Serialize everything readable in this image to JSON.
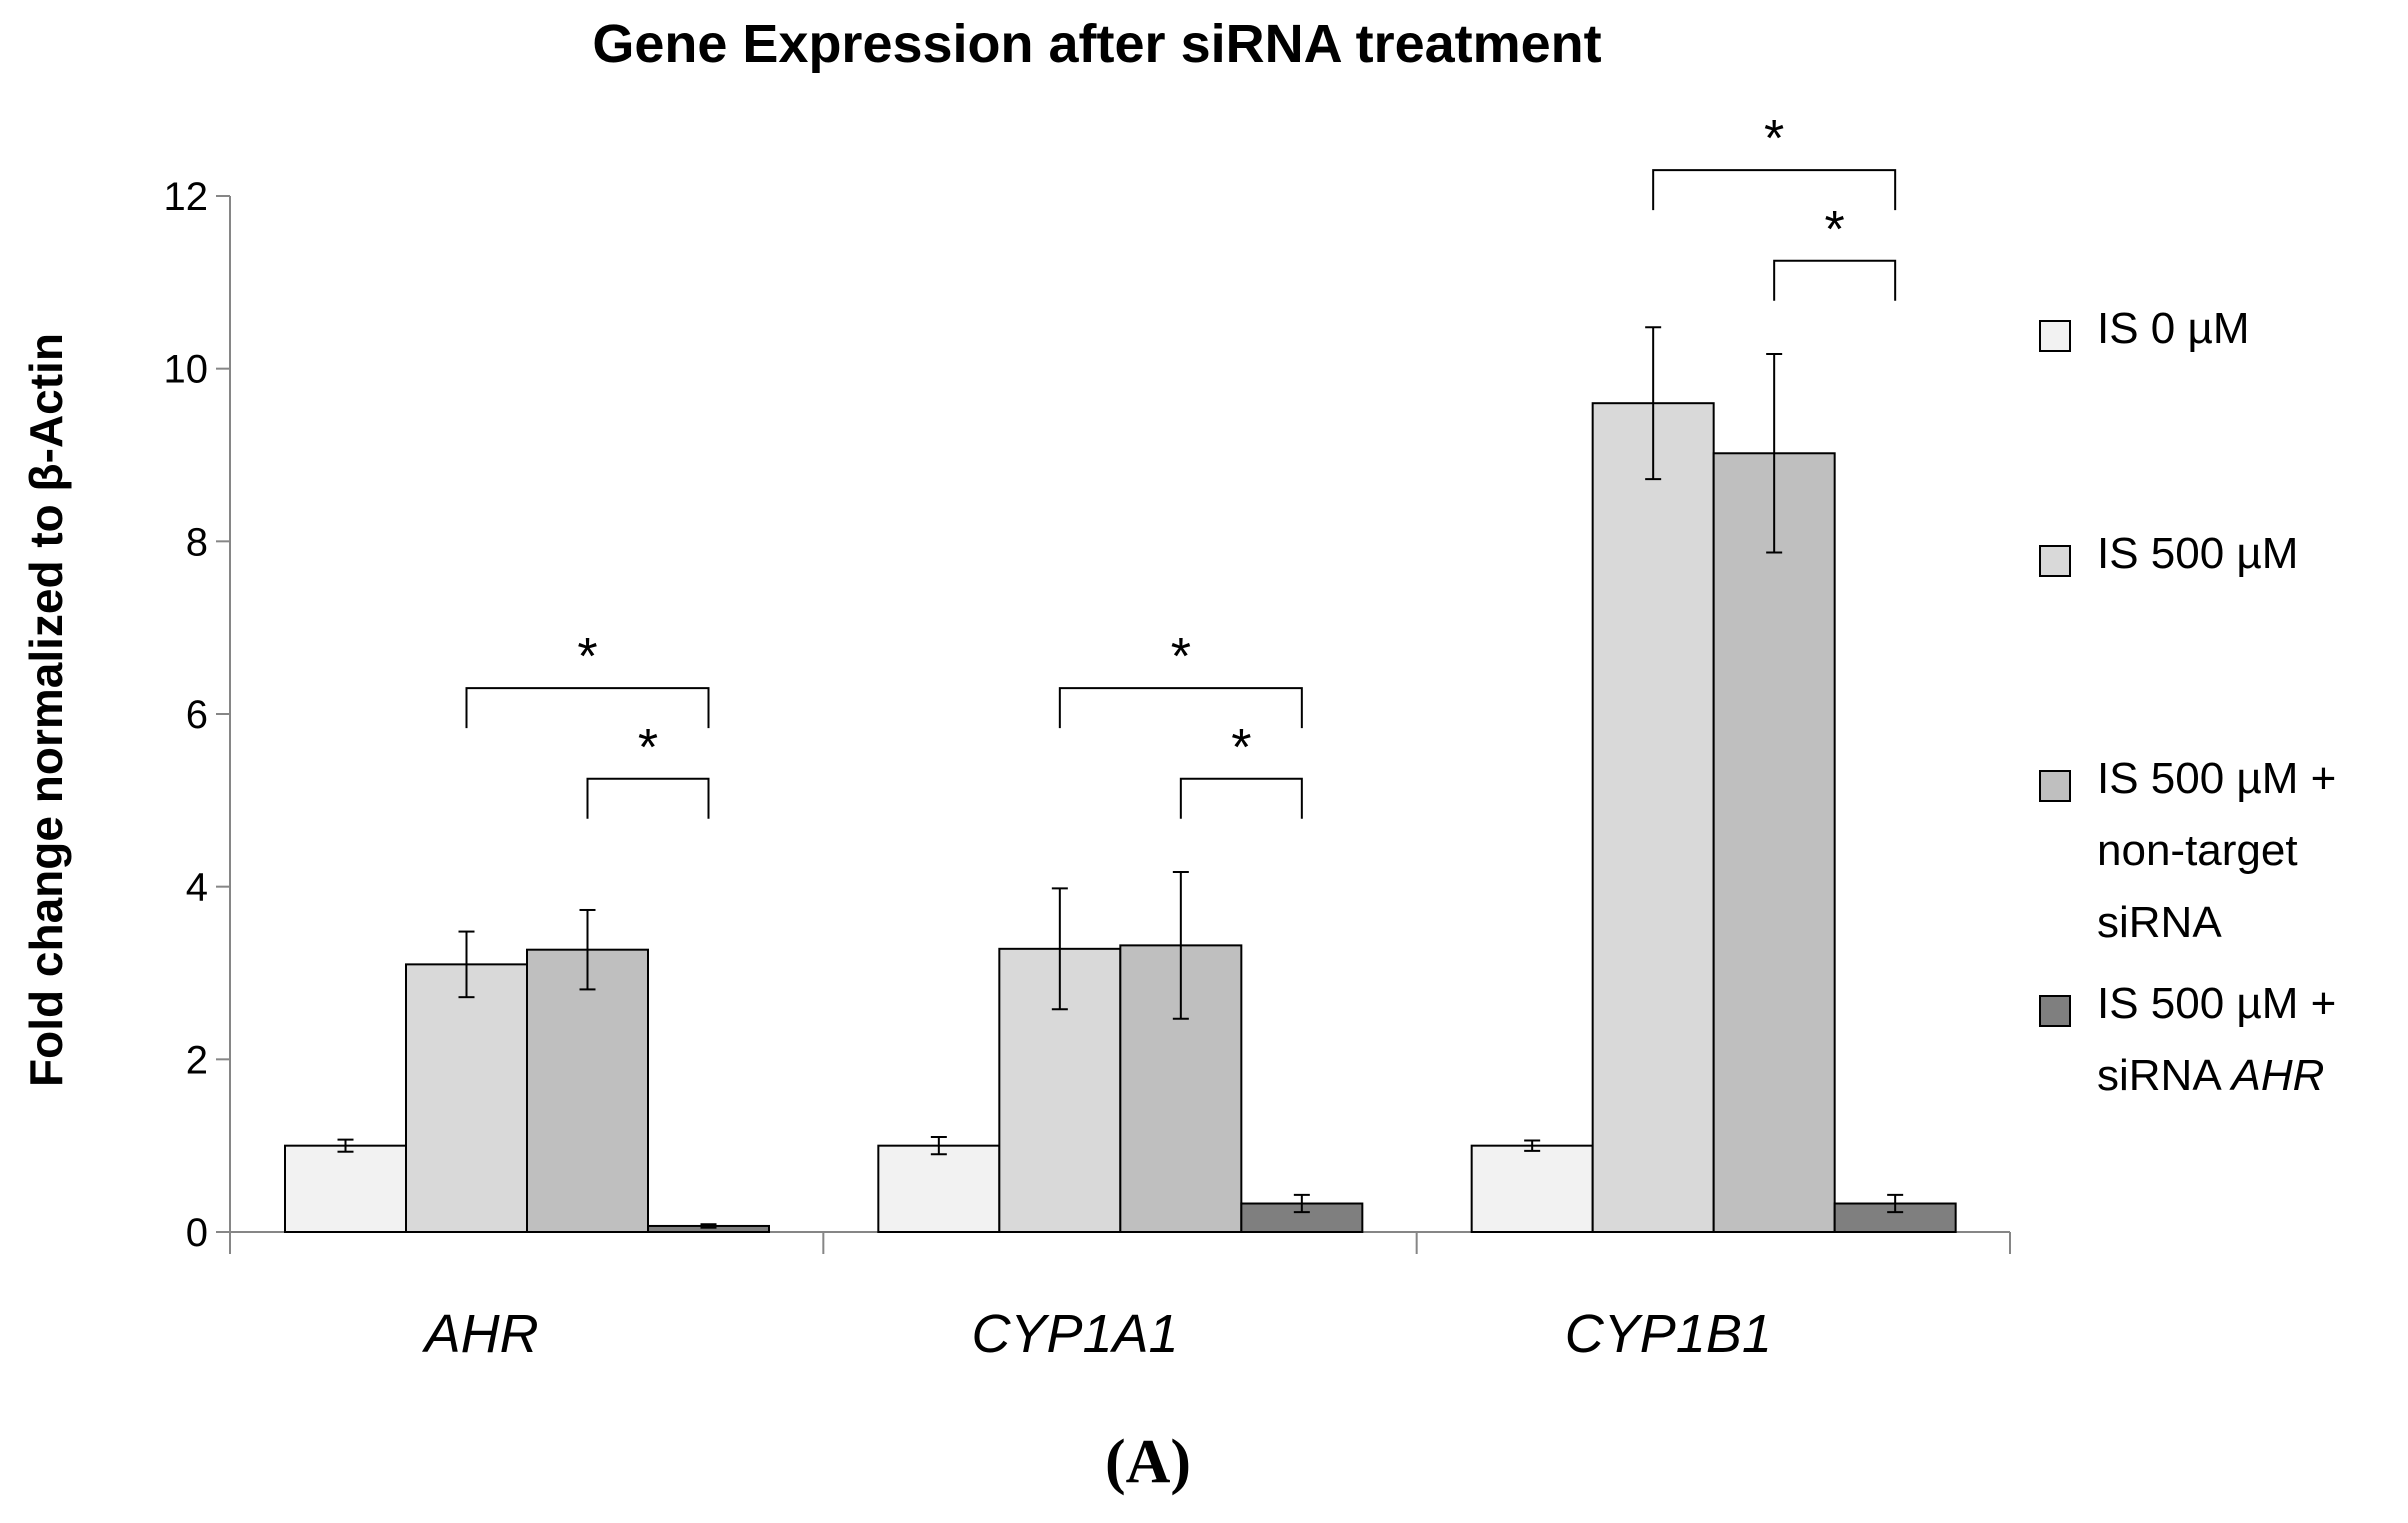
{
  "chart_data": {
    "type": "bar",
    "title": "Gene Expression after siRNA treatment",
    "ylabel": "Fold change normalized to β-Actin",
    "xlabel": "",
    "ylim": [
      0,
      12
    ],
    "yticks": [
      "0",
      "2",
      "4",
      "6",
      "8",
      "10",
      "12"
    ],
    "ytick_values": [
      0,
      2,
      4,
      6,
      8,
      10,
      12
    ],
    "categories": [
      "AHR",
      "CYP1A1",
      "CYP1B1"
    ],
    "series": [
      {
        "name": "IS 0 µM",
        "legend_lines": [
          "IS 0 µM"
        ],
        "color": "#f2f2f2",
        "values": [
          1.0,
          1.0,
          1.0
        ],
        "errors": [
          0.07,
          0.1,
          0.06
        ]
      },
      {
        "name": "IS 500 µM",
        "legend_lines": [
          "IS 500 µM"
        ],
        "color": "#d9d9d9",
        "values": [
          3.1,
          3.28,
          9.6
        ],
        "errors": [
          0.38,
          0.7,
          0.88
        ]
      },
      {
        "name": "IS 500 µM + non-target siRNA",
        "legend_lines": [
          "IS 500 µM +",
          "non-target",
          "siRNA"
        ],
        "color": "#bfbfbf",
        "values": [
          3.27,
          3.32,
          9.02
        ],
        "errors": [
          0.46,
          0.85,
          1.15
        ]
      },
      {
        "name": "IS 500 µM + siRNA AHR",
        "legend_lines": [
          "IS 500 µM +",
          "siRNA AHR"
        ],
        "color": "#7f7f7f",
        "values": [
          0.07,
          0.33,
          0.33
        ],
        "errors": [
          0.02,
          0.1,
          0.1
        ]
      }
    ],
    "significance": [
      {
        "category": 0,
        "from_series": 1,
        "to_series": 3,
        "y": 6.3,
        "label": "*"
      },
      {
        "category": 0,
        "from_series": 2,
        "to_series": 3,
        "y": 5.25,
        "label": "*"
      },
      {
        "category": 1,
        "from_series": 1,
        "to_series": 3,
        "y": 6.3,
        "label": "*"
      },
      {
        "category": 1,
        "from_series": 2,
        "to_series": 3,
        "y": 5.25,
        "label": "*"
      },
      {
        "category": 2,
        "from_series": 1,
        "to_series": 3,
        "y": 12.3,
        "label": "*"
      },
      {
        "category": 2,
        "from_series": 2,
        "to_series": 3,
        "y": 11.25,
        "label": "*"
      }
    ]
  },
  "panel_label": "(A)"
}
